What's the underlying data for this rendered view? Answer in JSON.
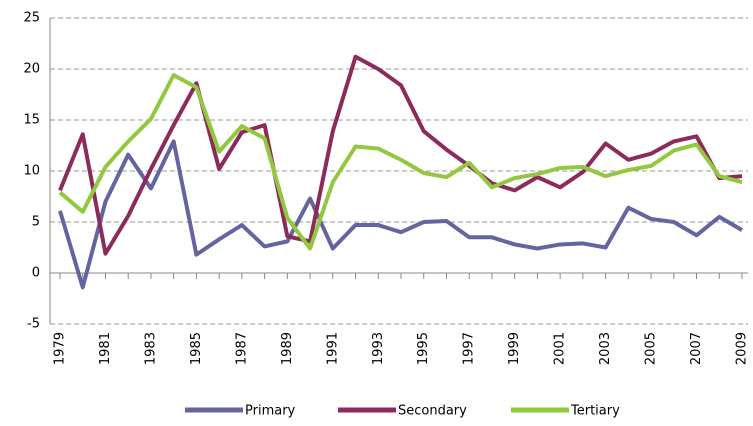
{
  "chart_data": {
    "type": "line",
    "x": [
      1979,
      1980,
      1981,
      1982,
      1983,
      1984,
      1985,
      1986,
      1987,
      1988,
      1989,
      1990,
      1991,
      1992,
      1993,
      1994,
      1995,
      1996,
      1997,
      1998,
      1999,
      2000,
      2001,
      2002,
      2003,
      2004,
      2005,
      2006,
      2007,
      2008,
      2009
    ],
    "xlim": [
      1979,
      2009
    ],
    "xticks": [
      1979,
      1981,
      1983,
      1985,
      1987,
      1989,
      1991,
      1993,
      1995,
      1997,
      1999,
      2001,
      2003,
      2005,
      2007,
      2009
    ],
    "ylim": [
      -5,
      25
    ],
    "yticks": [
      -5,
      0,
      5,
      10,
      15,
      20,
      25
    ],
    "grid": true,
    "legend": "bottom",
    "series": [
      {
        "name": "Primary",
        "color": "#6464a0",
        "values": [
          6.1,
          -1.4,
          7,
          11.6,
          8.3,
          12.9,
          1.8,
          3.3,
          4.7,
          2.6,
          3.1,
          7.3,
          2.4,
          4.7,
          4.7,
          4.0,
          5.0,
          5.1,
          3.5,
          3.5,
          2.8,
          2.4,
          2.8,
          2.9,
          2.5,
          6.4,
          5.3,
          5.0,
          3.7,
          5.5,
          4.2
        ]
      },
      {
        "name": "Secondary",
        "color": "#8c2a5c",
        "values": [
          8.1,
          13.6,
          1.9,
          5.6,
          10.2,
          14.5,
          18.6,
          10.2,
          13.8,
          14.5,
          3.6,
          3.1,
          13.9,
          21.2,
          20.0,
          18.4,
          13.9,
          12.1,
          10.5,
          8.8,
          8.1,
          9.4,
          8.4,
          9.9,
          12.7,
          11.1,
          11.7,
          12.9,
          13.4,
          9.3,
          9.5
        ]
      },
      {
        "name": "Tertiary",
        "color": "#92c83e",
        "values": [
          7.9,
          6.0,
          10.4,
          12.9,
          15.1,
          19.4,
          18.2,
          11.9,
          14.4,
          13.2,
          5.4,
          2.4,
          8.9,
          12.4,
          12.2,
          11.1,
          9.8,
          9.4,
          10.8,
          8.4,
          9.3,
          9.7,
          10.3,
          10.4,
          9.5,
          10.1,
          10.5,
          12.0,
          12.6,
          9.5,
          8.9
        ]
      }
    ]
  }
}
